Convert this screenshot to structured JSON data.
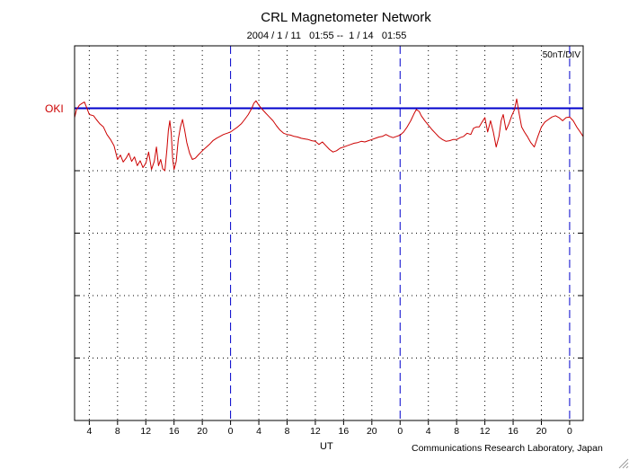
{
  "chart_data": {
    "type": "line",
    "title": "CRL Magnetometer Network",
    "subtitle": "2004 / 1 / 11   01:55 --  1 / 14   01:55",
    "scale_label": "50nT/DIV",
    "xlabel": "UT",
    "credit": "Communications Research Laboratory, Japan",
    "station": "OKI",
    "x_start_hour": 1.9167,
    "x_end_hour": 73.9167,
    "day_boundaries_hours": [
      24,
      48,
      72
    ],
    "xtick_hours": [
      4,
      8,
      12,
      16,
      20,
      24,
      28,
      32,
      36,
      40,
      44,
      48,
      52,
      56,
      60,
      64,
      68,
      72
    ],
    "xtick_labels": [
      "4",
      "8",
      "12",
      "16",
      "20",
      "0",
      "4",
      "8",
      "12",
      "16",
      "20",
      "0",
      "4",
      "8",
      "12",
      "16",
      "20",
      "0"
    ],
    "vertical_divisions": 6,
    "baseline_div": 1,
    "grid": true,
    "colors": {
      "trace": "#cc0000",
      "baseline": "#0000cc",
      "day_line": "#0000cc",
      "grid": "#000000"
    },
    "series": [
      {
        "values": [
          [
            1.92,
            -0.15
          ],
          [
            2.2,
            -0.02
          ],
          [
            2.6,
            0.05
          ],
          [
            3.0,
            0.08
          ],
          [
            3.3,
            0.1
          ],
          [
            3.6,
            0.02
          ],
          [
            4.0,
            -0.1
          ],
          [
            4.6,
            -0.12
          ],
          [
            5.0,
            -0.18
          ],
          [
            5.5,
            -0.25
          ],
          [
            6.0,
            -0.3
          ],
          [
            6.5,
            -0.42
          ],
          [
            7.0,
            -0.5
          ],
          [
            7.5,
            -0.6
          ],
          [
            8.0,
            -0.82
          ],
          [
            8.4,
            -0.75
          ],
          [
            8.8,
            -0.86
          ],
          [
            9.2,
            -0.8
          ],
          [
            9.6,
            -0.72
          ],
          [
            10.0,
            -0.85
          ],
          [
            10.4,
            -0.78
          ],
          [
            10.8,
            -0.92
          ],
          [
            11.2,
            -0.84
          ],
          [
            11.6,
            -0.95
          ],
          [
            12.0,
            -0.88
          ],
          [
            12.4,
            -0.7
          ],
          [
            12.8,
            -0.98
          ],
          [
            13.2,
            -0.85
          ],
          [
            13.5,
            -0.62
          ],
          [
            13.8,
            -0.92
          ],
          [
            14.1,
            -0.82
          ],
          [
            14.4,
            -0.97
          ],
          [
            14.7,
            -1.0
          ],
          [
            15.0,
            -0.65
          ],
          [
            15.2,
            -0.35
          ],
          [
            15.4,
            -0.2
          ],
          [
            15.6,
            -0.4
          ],
          [
            15.8,
            -0.8
          ],
          [
            16.0,
            -0.98
          ],
          [
            16.3,
            -0.85
          ],
          [
            16.6,
            -0.5
          ],
          [
            16.9,
            -0.3
          ],
          [
            17.2,
            -0.18
          ],
          [
            17.5,
            -0.35
          ],
          [
            17.8,
            -0.55
          ],
          [
            18.2,
            -0.72
          ],
          [
            18.6,
            -0.82
          ],
          [
            19.0,
            -0.8
          ],
          [
            19.5,
            -0.74
          ],
          [
            20.0,
            -0.68
          ],
          [
            20.5,
            -0.63
          ],
          [
            21.0,
            -0.58
          ],
          [
            21.5,
            -0.52
          ],
          [
            22.0,
            -0.48
          ],
          [
            22.5,
            -0.45
          ],
          [
            23.0,
            -0.42
          ],
          [
            23.5,
            -0.4
          ],
          [
            24.0,
            -0.38
          ],
          [
            24.5,
            -0.34
          ],
          [
            25.0,
            -0.3
          ],
          [
            25.5,
            -0.25
          ],
          [
            26.0,
            -0.18
          ],
          [
            26.5,
            -0.1
          ],
          [
            27.0,
            0.0
          ],
          [
            27.3,
            0.08
          ],
          [
            27.6,
            0.12
          ],
          [
            28.0,
            0.05
          ],
          [
            28.5,
            -0.02
          ],
          [
            29.0,
            -0.08
          ],
          [
            29.5,
            -0.14
          ],
          [
            30.0,
            -0.2
          ],
          [
            30.5,
            -0.28
          ],
          [
            31.0,
            -0.35
          ],
          [
            31.5,
            -0.4
          ],
          [
            32.0,
            -0.42
          ],
          [
            32.5,
            -0.43
          ],
          [
            33.0,
            -0.45
          ],
          [
            33.5,
            -0.46
          ],
          [
            34.0,
            -0.48
          ],
          [
            34.5,
            -0.49
          ],
          [
            35.0,
            -0.5
          ],
          [
            35.5,
            -0.52
          ],
          [
            36.0,
            -0.53
          ],
          [
            36.5,
            -0.58
          ],
          [
            37.0,
            -0.54
          ],
          [
            37.5,
            -0.6
          ],
          [
            38.0,
            -0.66
          ],
          [
            38.5,
            -0.7
          ],
          [
            39.0,
            -0.68
          ],
          [
            39.5,
            -0.64
          ],
          [
            40.0,
            -0.62
          ],
          [
            40.5,
            -0.6
          ],
          [
            41.0,
            -0.58
          ],
          [
            41.5,
            -0.56
          ],
          [
            42.0,
            -0.55
          ],
          [
            42.5,
            -0.53
          ],
          [
            43.0,
            -0.54
          ],
          [
            43.5,
            -0.52
          ],
          [
            44.0,
            -0.5
          ],
          [
            44.5,
            -0.48
          ],
          [
            45.0,
            -0.46
          ],
          [
            45.5,
            -0.45
          ],
          [
            46.0,
            -0.42
          ],
          [
            46.5,
            -0.45
          ],
          [
            47.0,
            -0.47
          ],
          [
            47.5,
            -0.45
          ],
          [
            48.0,
            -0.43
          ],
          [
            48.5,
            -0.38
          ],
          [
            49.0,
            -0.3
          ],
          [
            49.5,
            -0.2
          ],
          [
            50.0,
            -0.08
          ],
          [
            50.3,
            -0.02
          ],
          [
            50.7,
            -0.05
          ],
          [
            51.0,
            -0.12
          ],
          [
            51.5,
            -0.2
          ],
          [
            52.0,
            -0.27
          ],
          [
            52.5,
            -0.34
          ],
          [
            53.0,
            -0.4
          ],
          [
            53.5,
            -0.46
          ],
          [
            54.0,
            -0.5
          ],
          [
            54.5,
            -0.53
          ],
          [
            55.0,
            -0.52
          ],
          [
            55.5,
            -0.5
          ],
          [
            56.0,
            -0.5
          ],
          [
            56.5,
            -0.47
          ],
          [
            57.0,
            -0.45
          ],
          [
            57.5,
            -0.4
          ],
          [
            58.0,
            -0.42
          ],
          [
            58.4,
            -0.32
          ],
          [
            58.8,
            -0.3
          ],
          [
            59.2,
            -0.3
          ],
          [
            59.6,
            -0.22
          ],
          [
            60.0,
            -0.15
          ],
          [
            60.4,
            -0.38
          ],
          [
            60.8,
            -0.2
          ],
          [
            61.2,
            -0.38
          ],
          [
            61.6,
            -0.62
          ],
          [
            62.0,
            -0.45
          ],
          [
            62.3,
            -0.2
          ],
          [
            62.6,
            -0.1
          ],
          [
            63.0,
            -0.35
          ],
          [
            63.4,
            -0.25
          ],
          [
            63.8,
            -0.12
          ],
          [
            64.2,
            -0.02
          ],
          [
            64.5,
            0.15
          ],
          [
            64.8,
            -0.05
          ],
          [
            65.2,
            -0.3
          ],
          [
            65.6,
            -0.38
          ],
          [
            66.0,
            -0.45
          ],
          [
            66.5,
            -0.55
          ],
          [
            67.0,
            -0.62
          ],
          [
            67.5,
            -0.45
          ],
          [
            68.0,
            -0.3
          ],
          [
            68.5,
            -0.22
          ],
          [
            69.0,
            -0.18
          ],
          [
            69.5,
            -0.14
          ],
          [
            70.0,
            -0.12
          ],
          [
            70.5,
            -0.15
          ],
          [
            71.0,
            -0.2
          ],
          [
            71.5,
            -0.15
          ],
          [
            72.0,
            -0.14
          ],
          [
            72.5,
            -0.2
          ],
          [
            73.0,
            -0.3
          ],
          [
            73.5,
            -0.38
          ],
          [
            73.9,
            -0.45
          ]
        ]
      }
    ]
  }
}
